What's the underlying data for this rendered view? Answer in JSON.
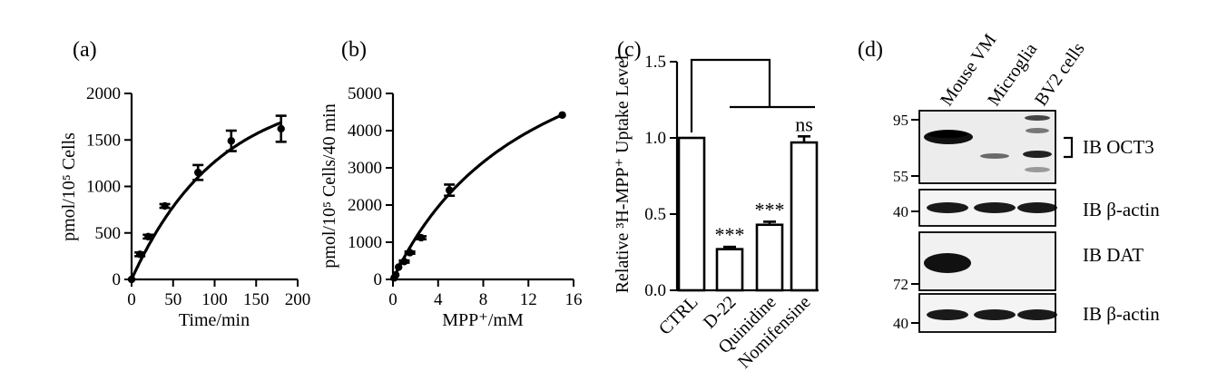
{
  "chart_data": [
    {
      "panel": "(a)",
      "type": "line",
      "xlabel": "Time/min",
      "ylabel": "pmol/10⁵ Cells",
      "xlim": [
        0,
        200
      ],
      "ylim": [
        0,
        2000
      ],
      "xticks": [
        "0",
        "50",
        "100",
        "150",
        "200"
      ],
      "yticks": [
        "0",
        "500",
        "1000",
        "1500",
        "2000"
      ],
      "x": [
        0,
        10,
        20,
        40,
        80,
        120,
        180
      ],
      "y": [
        0,
        270,
        460,
        790,
        1150,
        1490,
        1620
      ],
      "err": [
        0,
        20,
        20,
        20,
        80,
        110,
        140
      ],
      "fit": {
        "ymax": 2050,
        "k": 0.0096
      }
    },
    {
      "panel": "(b)",
      "type": "line",
      "xlabel": "MPP⁺/mM",
      "ylabel": "pmol/10⁵ Cells/40 min",
      "xlim": [
        0,
        16
      ],
      "ylim": [
        0,
        5000
      ],
      "xticks": [
        "0",
        "4",
        "8",
        "12",
        "16"
      ],
      "yticks": [
        "0",
        "1000",
        "2000",
        "3000",
        "4000",
        "5000"
      ],
      "x": [
        0.1,
        0.25,
        0.5,
        1,
        1.5,
        2.5,
        5,
        15
      ],
      "y": [
        40,
        120,
        330,
        480,
        720,
        1120,
        2400,
        4420
      ],
      "err": [
        0,
        0,
        0,
        30,
        30,
        40,
        150,
        0
      ],
      "fit": {
        "vmax": 8200,
        "km": 12.8
      }
    },
    {
      "panel": "(c)",
      "type": "bar",
      "ylabel": "Relative ³H-MPP⁺ Uptake Level",
      "ylim": [
        0,
        1.5
      ],
      "yticks": [
        "0.0",
        "0.5",
        "1.0",
        "1.5"
      ],
      "categories": [
        "CTRL",
        "D-22",
        "Quinidine",
        "Nomifensine"
      ],
      "values": [
        1.0,
        0.27,
        0.43,
        0.97
      ],
      "errors": [
        0,
        0.015,
        0.02,
        0.04
      ],
      "significance": [
        "",
        "***",
        "***",
        "ns"
      ]
    }
  ],
  "blot": {
    "panel": "(d)",
    "lanes": [
      "Mouse VM",
      "Microglia",
      "BV2 cells"
    ],
    "markers": {
      "oct3_top": "95",
      "oct3_bottom": "55",
      "actin1": "40",
      "dat": "72",
      "actin2": "40"
    },
    "labels": {
      "oct3": "IB OCT3",
      "actin1": "IB β-actin",
      "dat": "IB DAT",
      "actin2": "IB β-actin"
    }
  }
}
